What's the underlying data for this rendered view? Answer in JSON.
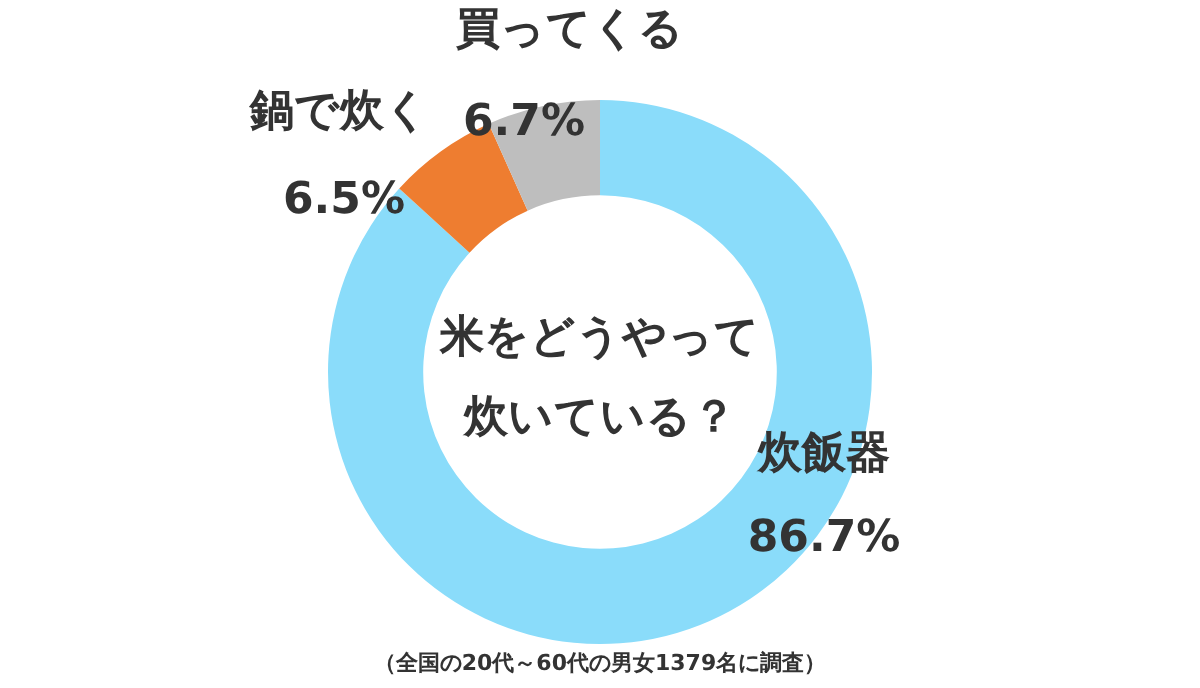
{
  "chart_data": {
    "type": "donut",
    "title": "米をどうやって炊いている？",
    "categories": [
      "炊飯器",
      "鍋で炊く",
      "買ってくる"
    ],
    "values": [
      86.7,
      6.5,
      6.7
    ],
    "colors": [
      "#8adcfa",
      "#ee7d30",
      "#bebebe"
    ],
    "value_labels": [
      "86.7%",
      "6.5%",
      "6.7%"
    ],
    "annotations": [
      "（全国の20代～60代の男女1379名に調査）"
    ],
    "legend": false
  }
}
